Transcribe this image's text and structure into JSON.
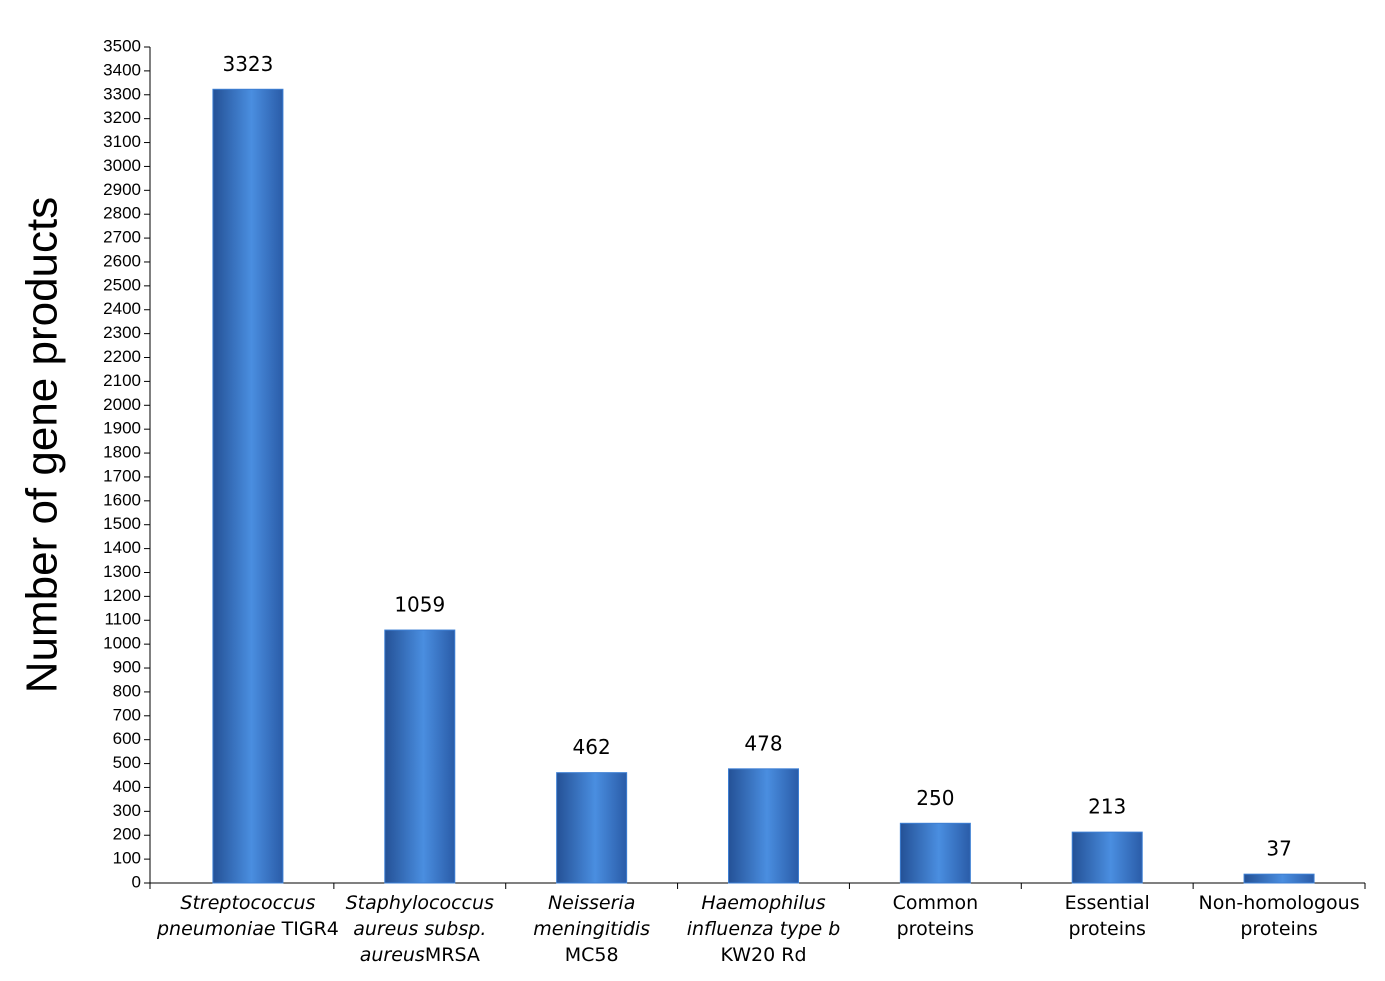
{
  "chart_data": {
    "type": "bar",
    "y_label": "Number of gene products",
    "categories": [
      [
        [
          {
            "text": "Streptococcus",
            "italic": true
          }
        ],
        [
          {
            "text": "pneumoniae",
            "italic": true
          },
          {
            "text": " TIGR4",
            "italic": false
          }
        ]
      ],
      [
        [
          {
            "text": "Staphylococcus",
            "italic": true
          }
        ],
        [
          {
            "text": "aureus subsp.",
            "italic": true
          }
        ],
        [
          {
            "text": "aureus",
            "italic": true
          },
          {
            "text": "MRSA",
            "italic": false
          }
        ]
      ],
      [
        [
          {
            "text": "Neisseria",
            "italic": true
          }
        ],
        [
          {
            "text": "meningitidis",
            "italic": true
          }
        ],
        [
          {
            "text": "MC58",
            "italic": false
          }
        ]
      ],
      [
        [
          {
            "text": "Haemophilus",
            "italic": true
          }
        ],
        [
          {
            "text": "influenza type b",
            "italic": true
          }
        ],
        [
          {
            "text": "KW20 Rd",
            "italic": false
          }
        ]
      ],
      [
        [
          {
            "text": "Common",
            "italic": false
          }
        ],
        [
          {
            "text": "proteins",
            "italic": false
          }
        ]
      ],
      [
        [
          {
            "text": "Essential",
            "italic": false
          }
        ],
        [
          {
            "text": "proteins",
            "italic": false
          }
        ]
      ],
      [
        [
          {
            "text": "Non-homologous",
            "italic": false
          }
        ],
        [
          {
            "text": "proteins",
            "italic": false
          }
        ]
      ]
    ],
    "values": [
      3323,
      1059,
      462,
      478,
      250,
      213,
      37
    ],
    "color": "#3d7fd3",
    "ylim": [
      0,
      3500
    ],
    "yticks": [
      0,
      100,
      200,
      300,
      400,
      500,
      600,
      700,
      800,
      900,
      1000,
      1100,
      1200,
      1300,
      1400,
      1500,
      1600,
      1700,
      1800,
      1900,
      2000,
      2100,
      2200,
      2300,
      2400,
      2500,
      2600,
      2700,
      2800,
      2900,
      3000,
      3100,
      3200,
      3300,
      3400,
      3500
    ],
    "grid": false
  }
}
